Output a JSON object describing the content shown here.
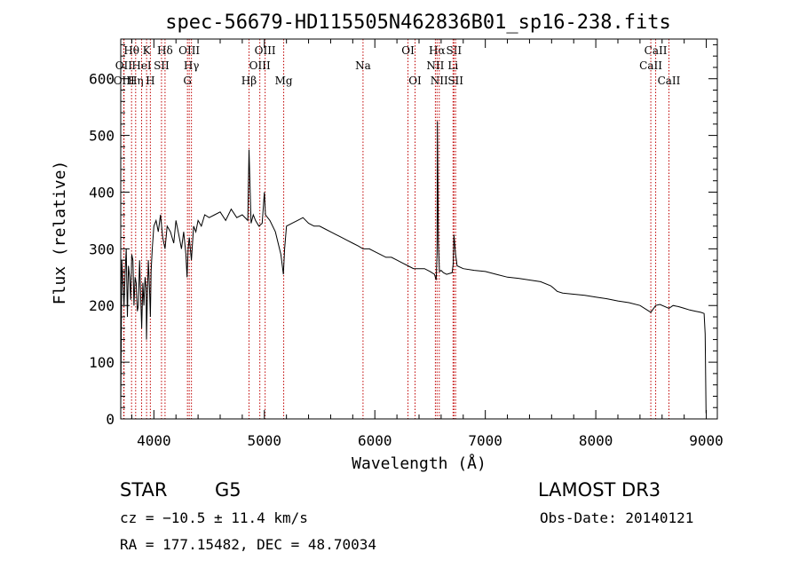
{
  "chart_data": {
    "type": "line",
    "title": "spec-56679-HD115505N462836B01_sp16-238.fits",
    "xlabel": "Wavelength (Å)",
    "ylabel": "Flux (relative)",
    "xlim": [
      3700,
      9100
    ],
    "ylim": [
      0,
      670
    ],
    "xticks": [
      4000,
      5000,
      6000,
      7000,
      8000,
      9000
    ],
    "yticks": [
      0,
      100,
      200,
      300,
      400,
      500,
      600
    ],
    "series": [
      {
        "name": "flux",
        "x": [
          3700,
          3710,
          3720,
          3730,
          3740,
          3750,
          3760,
          3770,
          3780,
          3790,
          3800,
          3810,
          3820,
          3830,
          3840,
          3850,
          3860,
          3870,
          3880,
          3890,
          3900,
          3910,
          3920,
          3930,
          3933,
          3940,
          3950,
          3960,
          3968,
          3975,
          3985,
          4000,
          4020,
          4040,
          4060,
          4080,
          4101,
          4120,
          4150,
          4180,
          4200,
          4230,
          4250,
          4270,
          4290,
          4300,
          4310,
          4320,
          4340,
          4360,
          4380,
          4400,
          4430,
          4460,
          4500,
          4550,
          4600,
          4650,
          4700,
          4750,
          4800,
          4850,
          4861,
          4880,
          4900,
          4920,
          4950,
          4980,
          5000,
          5010,
          5050,
          5100,
          5150,
          5172,
          5183,
          5200,
          5250,
          5300,
          5350,
          5400,
          5450,
          5500,
          5550,
          5600,
          5650,
          5700,
          5750,
          5800,
          5850,
          5893,
          5950,
          6000,
          6050,
          6100,
          6150,
          6200,
          6250,
          6300,
          6350,
          6400,
          6450,
          6500,
          6540,
          6555,
          6563,
          6566,
          6575,
          6585,
          6600,
          6620,
          6650,
          6700,
          6710,
          6716,
          6731,
          6745,
          6800,
          6900,
          7000,
          7100,
          7200,
          7300,
          7400,
          7500,
          7590,
          7610,
          7650,
          7700,
          7800,
          7900,
          8000,
          8100,
          8200,
          8300,
          8400,
          8498,
          8542,
          8580,
          8662,
          8700,
          8750,
          8800,
          8850,
          8900,
          8950,
          8980,
          8990,
          8998
        ],
        "values": [
          20,
          280,
          240,
          200,
          260,
          300,
          180,
          270,
          250,
          210,
          290,
          280,
          200,
          250,
          240,
          190,
          200,
          280,
          220,
          160,
          240,
          200,
          250,
          230,
          140,
          210,
          280,
          230,
          180,
          260,
          300,
          340,
          350,
          330,
          360,
          320,
          300,
          340,
          330,
          310,
          350,
          320,
          300,
          330,
          290,
          250,
          300,
          320,
          280,
          340,
          330,
          350,
          340,
          360,
          355,
          360,
          365,
          350,
          370,
          355,
          360,
          350,
          475,
          345,
          360,
          350,
          340,
          345,
          400,
          360,
          350,
          330,
          290,
          255,
          300,
          340,
          345,
          350,
          355,
          345,
          340,
          340,
          335,
          330,
          325,
          320,
          315,
          310,
          305,
          300,
          300,
          295,
          290,
          285,
          285,
          280,
          275,
          270,
          265,
          265,
          265,
          260,
          255,
          245,
          290,
          525,
          310,
          260,
          262,
          258,
          255,
          258,
          275,
          325,
          290,
          270,
          265,
          262,
          260,
          255,
          250,
          248,
          245,
          242,
          235,
          232,
          225,
          222,
          220,
          218,
          215,
          212,
          208,
          205,
          200,
          188,
          200,
          202,
          195,
          200,
          198,
          195,
          192,
          190,
          188,
          186,
          150,
          10
        ]
      }
    ],
    "line_markers": [
      {
        "label": "Hθ",
        "x": 3798,
        "row": 1
      },
      {
        "label": "OII",
        "x": 3727,
        "row": 2
      },
      {
        "label": "OIII",
        "x": 3730,
        "row": 3
      },
      {
        "label": "Hη",
        "x": 3835,
        "row": 3
      },
      {
        "label": "HeI",
        "x": 3889,
        "row": 2
      },
      {
        "label": "K",
        "x": 3934,
        "row": 1
      },
      {
        "label": "H",
        "x": 3968,
        "row": 3
      },
      {
        "label": "SII",
        "x": 4069,
        "row": 2
      },
      {
        "label": "Hδ",
        "x": 4101,
        "row": 1
      },
      {
        "label": "OIII",
        "x": 4320,
        "row": 1
      },
      {
        "label": "Hγ",
        "x": 4340,
        "row": 2
      },
      {
        "label": "G",
        "x": 4304,
        "row": 3
      },
      {
        "label": "Hβ",
        "x": 4861,
        "row": 3
      },
      {
        "label": "OIII",
        "x": 5007,
        "row": 1
      },
      {
        "label": "OIII",
        "x": 4959,
        "row": 2
      },
      {
        "label": "Mg",
        "x": 5175,
        "row": 3
      },
      {
        "label": "Na",
        "x": 5893,
        "row": 2
      },
      {
        "label": "OI",
        "x": 6300,
        "row": 1
      },
      {
        "label": "OI",
        "x": 6364,
        "row": 3
      },
      {
        "label": "Hα",
        "x": 6563,
        "row": 1
      },
      {
        "label": "NII",
        "x": 6548,
        "row": 2
      },
      {
        "label": "NII",
        "x": 6583,
        "row": 3
      },
      {
        "label": "SII",
        "x": 6716,
        "row": 1
      },
      {
        "label": "Li",
        "x": 6708,
        "row": 2
      },
      {
        "label": "SII",
        "x": 6731,
        "row": 3
      },
      {
        "label": "CaII",
        "x": 8542,
        "row": 1
      },
      {
        "label": "CaII",
        "x": 8498,
        "row": 2
      },
      {
        "label": "CaII",
        "x": 8662,
        "row": 3
      }
    ]
  },
  "info": {
    "object_class": "STAR",
    "subclass": "G5",
    "survey": "LAMOST DR3",
    "redshift": "cz = −10.5 ± 11.4 km/s",
    "obs_date": "Obs-Date: 20140121",
    "coords": "RA = 177.15482, DEC =  48.70034"
  },
  "colors": {
    "marker_line": "#c00000",
    "spectrum": "#000000",
    "axes": "#000000"
  }
}
